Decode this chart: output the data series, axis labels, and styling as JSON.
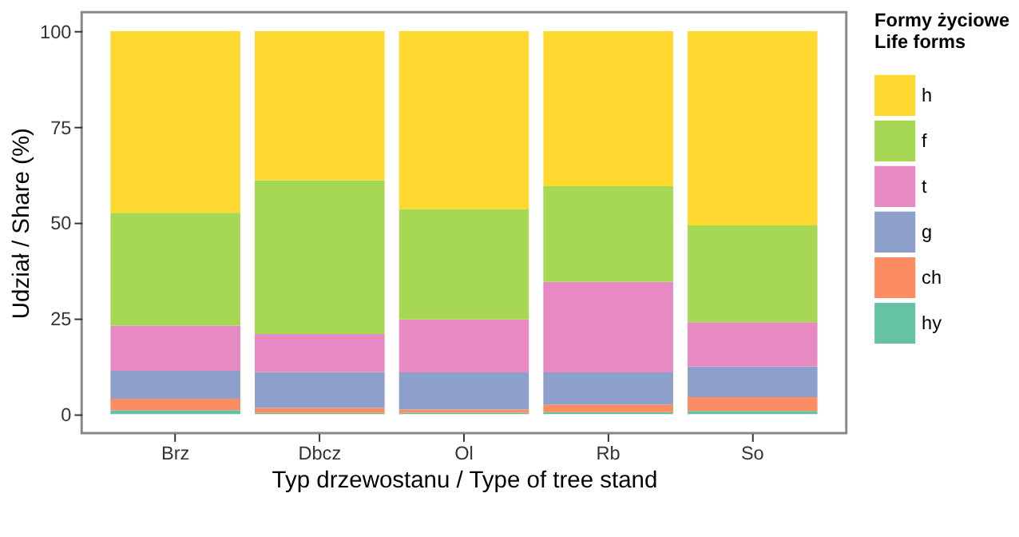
{
  "chart_data": {
    "type": "bar",
    "stacked": true,
    "xlabel": "Typ drzewostanu / Type of tree stand",
    "ylabel": "Udział / Share (%)",
    "legend_title": "Formy życiowe\nLife forms",
    "categories": [
      "Brz",
      "Dbcz",
      "Ol",
      "Rb",
      "So"
    ],
    "series": [
      {
        "name": "hy",
        "color": "#66c2a5",
        "values": [
          1.0,
          0.3,
          0.3,
          0.5,
          0.8
        ]
      },
      {
        "name": "ch",
        "color": "#fc8d62",
        "values": [
          3.0,
          1.3,
          0.9,
          2.0,
          3.6
        ]
      },
      {
        "name": "g",
        "color": "#8da0cb",
        "values": [
          7.3,
          9.4,
          9.7,
          8.4,
          8.0
        ]
      },
      {
        "name": "t",
        "color": "#e78ac3",
        "values": [
          11.8,
          9.9,
          13.8,
          23.6,
          11.6
        ]
      },
      {
        "name": "f",
        "color": "#a6d854",
        "values": [
          29.5,
          40.2,
          28.8,
          25.0,
          25.3
        ]
      },
      {
        "name": "h",
        "color": "#ffd92f",
        "values": [
          47.4,
          38.9,
          46.5,
          40.5,
          50.7
        ]
      }
    ],
    "ylim": [
      -5,
      105
    ],
    "yticks": [
      0,
      25,
      50,
      75,
      100
    ],
    "grid": false,
    "legend": "right"
  }
}
